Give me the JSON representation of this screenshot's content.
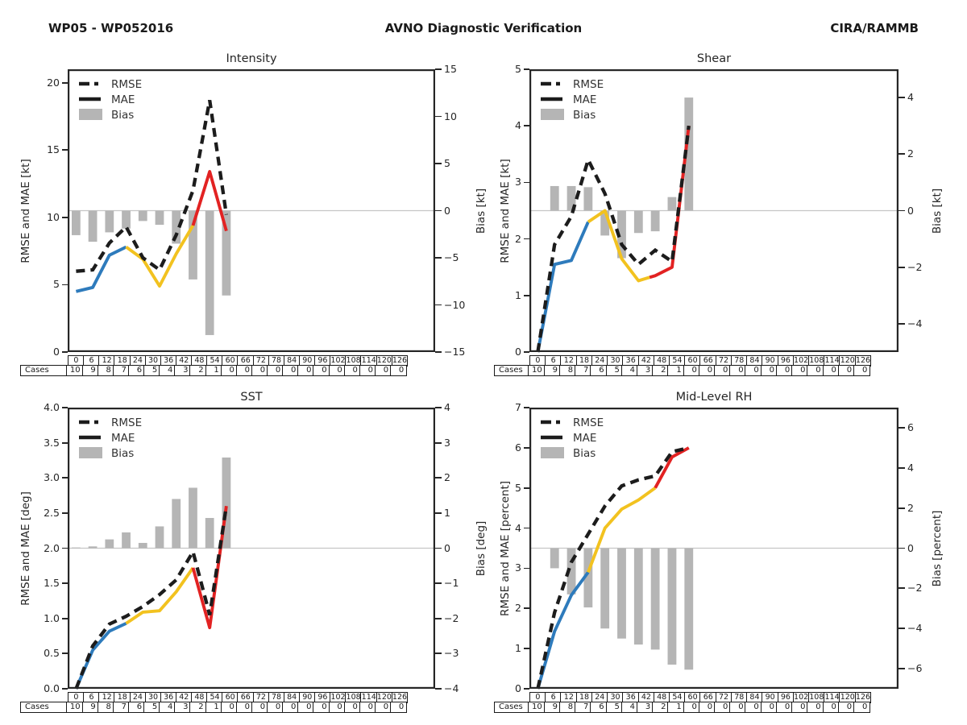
{
  "header": {
    "left": "WP05 - WP052016",
    "center": "AVNO Diagnostic Verification",
    "right": "CIRA/RAMMB"
  },
  "legend": {
    "rmse_label": "RMSE",
    "mae_label": "MAE",
    "bias_label": "Bias"
  },
  "cases_label": "Cases",
  "colors": {
    "blue": "#2e7bbc",
    "yellow": "#f2c21f",
    "red": "#e22222",
    "bar_gray": "#b5b5b5",
    "line_black": "#1c1c1c",
    "zero_line": "#c6c6c6",
    "axis": "#262626"
  },
  "x_ticks": [
    0,
    6,
    12,
    18,
    24,
    30,
    36,
    42,
    48,
    54,
    60,
    66,
    72,
    78,
    84,
    90,
    96,
    102,
    108,
    114,
    120,
    126
  ],
  "cases": [
    10,
    9,
    8,
    7,
    6,
    5,
    4,
    3,
    2,
    1,
    0,
    0,
    0,
    0,
    0,
    0,
    0,
    0,
    0,
    0,
    0,
    0
  ],
  "chart_data": [
    {
      "title": "Intensity",
      "type": "line",
      "x": [
        0,
        6,
        12,
        18,
        24,
        30,
        36,
        42,
        48,
        54
      ],
      "series": [
        {
          "name": "RMSE",
          "style": "dashed-line",
          "axis": "left",
          "color": "black",
          "values": [
            6.0,
            6.1,
            8.1,
            9.3,
            7.0,
            6.1,
            8.7,
            12.0,
            18.7,
            10.2
          ]
        },
        {
          "name": "MAE",
          "style": "line",
          "axis": "left",
          "color": "blue-yellow-red",
          "color_breaks": {
            "blue_end": 18,
            "yellow_end": 42
          },
          "values": [
            4.5,
            4.8,
            7.2,
            7.8,
            6.9,
            4.9,
            7.3,
            9.4,
            13.4,
            9.0
          ]
        },
        {
          "name": "Bias",
          "style": "bar",
          "axis": "right",
          "color": "gray",
          "values": [
            -2.6,
            -3.3,
            -2.3,
            -1.9,
            -1.1,
            -1.5,
            -3.5,
            -7.3,
            -13.2,
            -9.0
          ]
        }
      ],
      "ylabel_left": "RMSE and MAE [kt]",
      "ylabel_right": "Bias [kt]",
      "ylim_left": [
        0,
        21
      ],
      "ylim_right": [
        -15,
        15
      ],
      "yticks_left": [
        "0",
        "5",
        "10",
        "15",
        "20"
      ],
      "yticks_right": [
        "−15",
        "−10",
        "−5",
        "0",
        "5",
        "10",
        "15"
      ],
      "grid": "zero-line-only",
      "legend_position": "upper-left"
    },
    {
      "title": "Shear",
      "type": "line",
      "x": [
        0,
        6,
        12,
        18,
        24,
        30,
        36,
        42,
        48,
        54
      ],
      "series": [
        {
          "name": "RMSE",
          "style": "dashed-line",
          "axis": "left",
          "color": "black",
          "values": [
            0.0,
            1.9,
            2.4,
            3.4,
            2.8,
            1.9,
            1.55,
            1.8,
            1.6,
            4.0
          ]
        },
        {
          "name": "MAE",
          "style": "line",
          "axis": "left",
          "color": "blue-yellow-red",
          "color_breaks": {
            "blue_end": 18,
            "yellow_end": 40
          },
          "values": [
            0.0,
            1.55,
            1.62,
            2.3,
            2.5,
            1.65,
            1.26,
            1.35,
            1.5,
            4.0
          ]
        },
        {
          "name": "Bias",
          "style": "bar",
          "axis": "right",
          "color": "gray",
          "values": [
            0.0,
            0.87,
            0.87,
            0.83,
            -0.88,
            -1.68,
            -0.79,
            -0.73,
            0.48,
            4.0
          ]
        }
      ],
      "ylabel_left": "RMSE and MAE [kt]",
      "ylabel_right": "Bias [kt]",
      "ylim_left": [
        0,
        5
      ],
      "ylim_right": [
        -5,
        5
      ],
      "yticks_left": [
        "0",
        "1",
        "2",
        "3",
        "4",
        "5"
      ],
      "yticks_right": [
        "−4",
        "−2",
        "0",
        "2",
        "4"
      ],
      "grid": "zero-line-only",
      "legend_position": "upper-left"
    },
    {
      "title": "SST",
      "type": "line",
      "x": [
        0,
        6,
        12,
        18,
        24,
        30,
        36,
        42,
        48,
        54
      ],
      "series": [
        {
          "name": "RMSE",
          "style": "dashed-line",
          "axis": "left",
          "color": "black",
          "values": [
            0.0,
            0.61,
            0.92,
            1.03,
            1.17,
            1.34,
            1.55,
            1.95,
            1.05,
            2.6
          ]
        },
        {
          "name": "MAE",
          "style": "line",
          "axis": "left",
          "color": "blue-yellow-red",
          "color_breaks": {
            "blue_end": 18,
            "yellow_end": 42
          },
          "values": [
            0.0,
            0.55,
            0.82,
            0.93,
            1.09,
            1.11,
            1.38,
            1.72,
            0.87,
            2.6
          ]
        },
        {
          "name": "Bias",
          "style": "bar",
          "axis": "right",
          "color": "gray",
          "values": [
            0.02,
            0.05,
            0.25,
            0.45,
            0.15,
            0.62,
            1.4,
            1.72,
            0.86,
            2.58
          ]
        }
      ],
      "ylabel_left": "RMSE and MAE [deg]",
      "ylabel_right": "Bias [deg]",
      "ylim_left": [
        0,
        4
      ],
      "ylim_right": [
        -4,
        4
      ],
      "yticks_left": [
        "0.0",
        "0.5",
        "1.0",
        "1.5",
        "2.0",
        "2.5",
        "3.0",
        "3.5",
        "4.0"
      ],
      "yticks_right": [
        "−4",
        "−3",
        "−2",
        "−1",
        "0",
        "1",
        "2",
        "3",
        "4"
      ],
      "grid": "zero-line-only",
      "legend_position": "upper-left"
    },
    {
      "title": "Mid-Level RH",
      "type": "line",
      "x": [
        0,
        6,
        12,
        18,
        24,
        30,
        36,
        42,
        48,
        54
      ],
      "series": [
        {
          "name": "RMSE",
          "style": "dashed-line",
          "axis": "left",
          "color": "black",
          "values": [
            0.0,
            1.9,
            3.15,
            3.85,
            4.55,
            5.05,
            5.2,
            5.3,
            5.9,
            6.0
          ]
        },
        {
          "name": "MAE",
          "style": "line",
          "axis": "left",
          "color": "blue-yellow-red",
          "color_breaks": {
            "blue_end": 18,
            "yellow_end": 42
          },
          "values": [
            0.0,
            1.43,
            2.33,
            2.9,
            4.0,
            4.47,
            4.7,
            5.0,
            5.77,
            6.0
          ]
        },
        {
          "name": "Bias",
          "style": "bar",
          "axis": "right",
          "color": "gray",
          "values": [
            0.0,
            -1.0,
            -2.3,
            -2.95,
            -4.0,
            -4.5,
            -4.8,
            -5.05,
            -5.8,
            -6.05
          ]
        }
      ],
      "ylabel_left": "RMSE and MAE [percent]",
      "ylabel_right": "Bias [percent]",
      "ylim_left": [
        0,
        7
      ],
      "ylim_right": [
        -7,
        7
      ],
      "yticks_left": [
        "0",
        "1",
        "2",
        "3",
        "4",
        "5",
        "6",
        "7"
      ],
      "yticks_right": [
        "−6",
        "−4",
        "−2",
        "0",
        "2",
        "4",
        "6"
      ],
      "grid": "zero-line-only",
      "legend_position": "upper-left"
    }
  ]
}
